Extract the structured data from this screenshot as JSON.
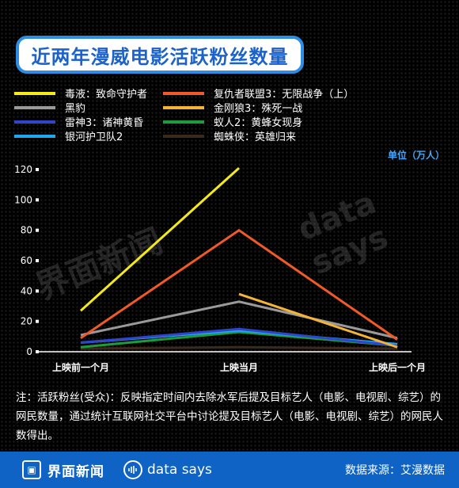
{
  "title": "近两年漫威电影活跃粉丝数量",
  "unit_label": "单位（万人）",
  "watermark": {
    "brand1": "界面新闻",
    "brand2": "data says"
  },
  "note": "注：活跃粉丝(受众)：反映指定时间内去除水军后提及目标艺人（电影、电视剧、综艺）的网民数量，通过统计互联网社交平台中讨论提及目标艺人（电影、电视剧、综艺）的网民人数得出。",
  "footer": {
    "brand1": "界面新闻",
    "brand2": "data says",
    "source": "数据来源：艾漫数据"
  },
  "colors": {
    "background": "#000000",
    "accent": "#2d8de3",
    "footer": "#0e63c4"
  },
  "chart_data": {
    "type": "line",
    "categories": [
      "上映前一个月",
      "上映当月",
      "上映后一个月"
    ],
    "ylim": [
      0,
      120
    ],
    "yticks": [
      0,
      20,
      40,
      60,
      80,
      100,
      120
    ],
    "ylabel": "单位（万人）",
    "legend_position": "top",
    "series": [
      {
        "name": "毒液：致命守护者",
        "color": "#f5e91a",
        "values": [
          27,
          121,
          null
        ]
      },
      {
        "name": "复仇者联盟3：无限战争（上）",
        "color": "#f05a28",
        "values": [
          9,
          80,
          8
        ]
      },
      {
        "name": "黑豹",
        "color": "#9a9a9a",
        "values": [
          11,
          33,
          9
        ]
      },
      {
        "name": "金刚狼3：殊死一战",
        "color": "#f6b33a",
        "values": [
          null,
          38,
          3
        ]
      },
      {
        "name": "雷神3：诸神黄昏",
        "color": "#2f46c9",
        "values": [
          6,
          15,
          4
        ]
      },
      {
        "name": "蚁人2：黄蜂女现身",
        "color": "#1f9b3f",
        "values": [
          3,
          13,
          4
        ]
      },
      {
        "name": "银河护卫队2",
        "color": "#1fa8f0",
        "values": [
          6,
          14,
          5
        ]
      },
      {
        "name": "蜘蛛侠：英雄归来",
        "color": "#3a2a1e",
        "values": [
          2,
          3,
          2
        ]
      }
    ]
  }
}
